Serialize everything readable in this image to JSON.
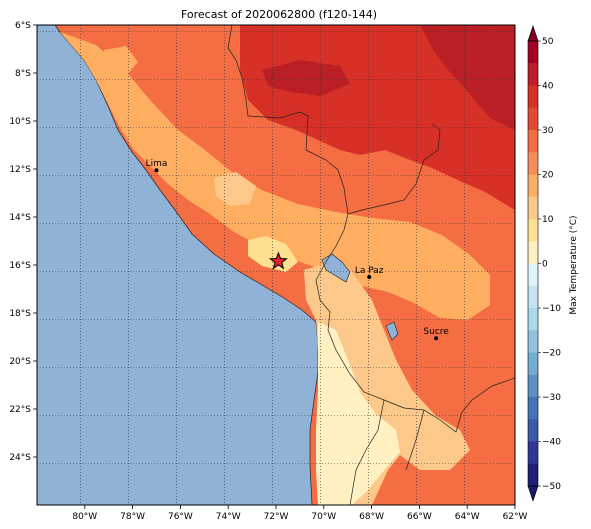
{
  "title": "Forecast of 2020062800 (f120-144)",
  "map": {
    "lon_min": -82,
    "lon_max": -62,
    "lat_min": -26,
    "lat_max": -6,
    "lon_ticks": [
      "80°W",
      "78°W",
      "76°W",
      "74°W",
      "72°W",
      "70°W",
      "68°W",
      "66°W",
      "64°W",
      "62°W"
    ],
    "lat_ticks": [
      "6°S",
      "8°S",
      "10°S",
      "12°S",
      "14°S",
      "16°S",
      "18°S",
      "20°S",
      "22°S",
      "24°S"
    ],
    "ocean_color": "#8fb2d6",
    "grid": "dotted",
    "cities": [
      {
        "name": "Lima",
        "lon": -77.0,
        "lat": -12.05
      },
      {
        "name": "La Paz",
        "lon": -68.1,
        "lat": -16.5
      },
      {
        "name": "Sucre",
        "lon": -65.3,
        "lat": -19.05
      }
    ],
    "marker": {
      "symbol": "star",
      "lon": -71.9,
      "lat": -15.85,
      "color": "#e8212c"
    }
  },
  "colorbar": {
    "label": "Max Temperature (°C)",
    "ticks": [
      "50",
      "40",
      "30",
      "20",
      "10",
      "0",
      "−10",
      "−20",
      "−30",
      "−40",
      "−50"
    ],
    "levels": [
      50,
      45,
      40,
      35,
      30,
      25,
      20,
      15,
      10,
      5,
      0,
      -5,
      -10,
      -15,
      -20,
      -25,
      -30,
      -35,
      -40,
      -45,
      -50
    ],
    "colors": [
      "#a50026",
      "#c11c2a",
      "#d73027",
      "#e34a33",
      "#f46d43",
      "#f88d59",
      "#fdae61",
      "#fdc98a",
      "#fee090",
      "#fff1c1",
      "#e0f3f8",
      "#c6e4ef",
      "#abd9e9",
      "#92c2dd",
      "#74add1",
      "#5f8fc3",
      "#4575b4",
      "#3b5aa8",
      "#313695",
      "#1f1f7a"
    ],
    "extend_colors": {
      "top": "#800020",
      "bottom": "#1a1a6b"
    }
  },
  "chart_data": {
    "type": "heatmap",
    "variable": "Max Temperature (°C)",
    "color_range": [
      -50,
      50
    ],
    "extent": {
      "lon": [
        -82,
        -62
      ],
      "lat": [
        -26,
        -6
      ]
    }
  }
}
